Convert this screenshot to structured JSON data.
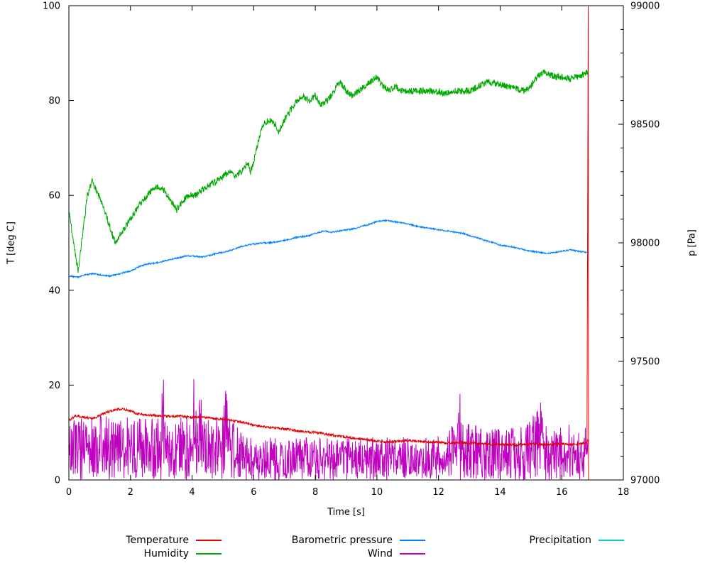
{
  "chart_data": {
    "type": "line",
    "title": "",
    "xlabel": "Time [s]",
    "ylabel_left": "T [deg C]",
    "ylabel_right": "p [Pa]",
    "xlim": [
      0,
      18
    ],
    "ylim_left": [
      0,
      100
    ],
    "ylim_right": [
      97000,
      99000
    ],
    "xticks": [
      0,
      2,
      4,
      6,
      8,
      10,
      12,
      14,
      16,
      18
    ],
    "yticks_left": [
      0,
      20,
      40,
      60,
      80,
      100
    ],
    "yticks_right": [
      97000,
      97500,
      98000,
      98500,
      99000
    ],
    "yticks_right_minor_step": 100,
    "grid": false,
    "legend_position": "bottom",
    "series": [
      {
        "name": "Temperature",
        "color": "#dd0000",
        "axis": "left",
        "style": "noisy-line",
        "noise": 0.25,
        "keypoints": [
          [
            0,
            12.5
          ],
          [
            0.2,
            13.5
          ],
          [
            0.5,
            13.2
          ],
          [
            0.8,
            13.0
          ],
          [
            1.0,
            13.6
          ],
          [
            1.2,
            14.2
          ],
          [
            1.5,
            14.8
          ],
          [
            1.7,
            15.0
          ],
          [
            2.0,
            14.6
          ],
          [
            2.2,
            14.0
          ],
          [
            2.5,
            13.7
          ],
          [
            2.8,
            13.6
          ],
          [
            3.0,
            13.5
          ],
          [
            3.3,
            13.4
          ],
          [
            3.6,
            13.5
          ],
          [
            4.0,
            13.2
          ],
          [
            4.3,
            13.3
          ],
          [
            4.6,
            13.0
          ],
          [
            5.0,
            12.8
          ],
          [
            5.3,
            12.5
          ],
          [
            5.6,
            12.2
          ],
          [
            6.0,
            11.6
          ],
          [
            6.3,
            11.2
          ],
          [
            6.6,
            11.0
          ],
          [
            7.0,
            10.8
          ],
          [
            7.3,
            10.5
          ],
          [
            7.6,
            10.2
          ],
          [
            8.0,
            10.0
          ],
          [
            8.3,
            9.7
          ],
          [
            8.6,
            9.4
          ],
          [
            9.0,
            9.0
          ],
          [
            9.3,
            8.8
          ],
          [
            9.6,
            8.5
          ],
          [
            10.0,
            8.2
          ],
          [
            10.3,
            8.0
          ],
          [
            10.6,
            8.1
          ],
          [
            11.0,
            8.3
          ],
          [
            11.3,
            8.2
          ],
          [
            11.6,
            8.0
          ],
          [
            12.0,
            7.9
          ],
          [
            12.5,
            7.8
          ],
          [
            13.0,
            7.8
          ],
          [
            13.5,
            7.6
          ],
          [
            14.0,
            7.5
          ],
          [
            14.5,
            7.4
          ],
          [
            15.0,
            7.6
          ],
          [
            15.5,
            7.4
          ],
          [
            16.0,
            7.6
          ],
          [
            16.4,
            7.5
          ],
          [
            16.7,
            7.7
          ],
          [
            16.82,
            8.0
          ],
          [
            16.86,
            100
          ],
          [
            16.87,
            0
          ]
        ]
      },
      {
        "name": "Humidity",
        "color": "#00aa00",
        "axis": "left",
        "style": "noisy-line",
        "noise": 0.7,
        "keypoints": [
          [
            0,
            57
          ],
          [
            0.15,
            50
          ],
          [
            0.3,
            44
          ],
          [
            0.45,
            52
          ],
          [
            0.6,
            60
          ],
          [
            0.75,
            63
          ],
          [
            0.9,
            61
          ],
          [
            1.1,
            58
          ],
          [
            1.3,
            54
          ],
          [
            1.5,
            50
          ],
          [
            1.7,
            52
          ],
          [
            1.9,
            54
          ],
          [
            2.1,
            56
          ],
          [
            2.4,
            59
          ],
          [
            2.7,
            61
          ],
          [
            2.9,
            62
          ],
          [
            3.1,
            61
          ],
          [
            3.3,
            59
          ],
          [
            3.5,
            57
          ],
          [
            3.7,
            59
          ],
          [
            3.9,
            60
          ],
          [
            4.1,
            60
          ],
          [
            4.3,
            61
          ],
          [
            4.5,
            62
          ],
          [
            4.8,
            63
          ],
          [
            5.0,
            64
          ],
          [
            5.2,
            65
          ],
          [
            5.4,
            64
          ],
          [
            5.6,
            65
          ],
          [
            5.8,
            67
          ],
          [
            5.9,
            65
          ],
          [
            6.0,
            67
          ],
          [
            6.1,
            70
          ],
          [
            6.3,
            75
          ],
          [
            6.5,
            76
          ],
          [
            6.7,
            75
          ],
          [
            6.8,
            73
          ],
          [
            7.0,
            76
          ],
          [
            7.2,
            78
          ],
          [
            7.4,
            80
          ],
          [
            7.6,
            81
          ],
          [
            7.8,
            80
          ],
          [
            8.0,
            81
          ],
          [
            8.2,
            79
          ],
          [
            8.4,
            80
          ],
          [
            8.6,
            82
          ],
          [
            8.8,
            84
          ],
          [
            9.0,
            82
          ],
          [
            9.2,
            81
          ],
          [
            9.4,
            82
          ],
          [
            9.6,
            83
          ],
          [
            9.8,
            84
          ],
          [
            10.0,
            85
          ],
          [
            10.2,
            83
          ],
          [
            10.4,
            82
          ],
          [
            10.6,
            83
          ],
          [
            10.8,
            82
          ],
          [
            11.0,
            82
          ],
          [
            11.5,
            82
          ],
          [
            12.0,
            82
          ],
          [
            12.2,
            81.5
          ],
          [
            12.5,
            82
          ],
          [
            13.0,
            82
          ],
          [
            13.3,
            83
          ],
          [
            13.6,
            84
          ],
          [
            13.9,
            83.5
          ],
          [
            14.2,
            83
          ],
          [
            14.5,
            82.5
          ],
          [
            14.8,
            82
          ],
          [
            15.0,
            83
          ],
          [
            15.2,
            85
          ],
          [
            15.4,
            86
          ],
          [
            15.6,
            85.5
          ],
          [
            15.8,
            85
          ],
          [
            16.0,
            85
          ],
          [
            16.3,
            84.5
          ],
          [
            16.5,
            85
          ],
          [
            16.7,
            85.5
          ],
          [
            16.85,
            86
          ]
        ]
      },
      {
        "name": "Barometric pressure",
        "color": "#0080ff",
        "axis": "right",
        "style": "noisy-line",
        "noise": 3,
        "keypoints": [
          [
            0,
            97860
          ],
          [
            0.3,
            97855
          ],
          [
            0.5,
            97865
          ],
          [
            0.8,
            97870
          ],
          [
            1.0,
            97865
          ],
          [
            1.3,
            97860
          ],
          [
            1.5,
            97865
          ],
          [
            1.8,
            97875
          ],
          [
            2.0,
            97880
          ],
          [
            2.3,
            97900
          ],
          [
            2.5,
            97910
          ],
          [
            2.8,
            97915
          ],
          [
            3.0,
            97920
          ],
          [
            3.3,
            97930
          ],
          [
            3.5,
            97935
          ],
          [
            3.8,
            97945
          ],
          [
            4.0,
            97945
          ],
          [
            4.3,
            97940
          ],
          [
            4.5,
            97945
          ],
          [
            4.8,
            97955
          ],
          [
            5.0,
            97960
          ],
          [
            5.3,
            97970
          ],
          [
            5.5,
            97980
          ],
          [
            5.8,
            97990
          ],
          [
            6.0,
            97995
          ],
          [
            6.3,
            98000
          ],
          [
            6.5,
            98000
          ],
          [
            6.8,
            98005
          ],
          [
            7.0,
            98010
          ],
          [
            7.3,
            98020
          ],
          [
            7.5,
            98025
          ],
          [
            7.8,
            98030
          ],
          [
            8.0,
            98040
          ],
          [
            8.3,
            98050
          ],
          [
            8.5,
            98045
          ],
          [
            8.8,
            98050
          ],
          [
            9.0,
            98055
          ],
          [
            9.3,
            98060
          ],
          [
            9.5,
            98070
          ],
          [
            9.8,
            98080
          ],
          [
            10.0,
            98090
          ],
          [
            10.3,
            98095
          ],
          [
            10.5,
            98090
          ],
          [
            10.8,
            98085
          ],
          [
            11.0,
            98080
          ],
          [
            11.3,
            98070
          ],
          [
            11.5,
            98065
          ],
          [
            11.8,
            98060
          ],
          [
            12.0,
            98055
          ],
          [
            12.3,
            98050
          ],
          [
            12.5,
            98045
          ],
          [
            12.8,
            98040
          ],
          [
            13.0,
            98030
          ],
          [
            13.3,
            98020
          ],
          [
            13.5,
            98010
          ],
          [
            13.8,
            98000
          ],
          [
            14.0,
            97990
          ],
          [
            14.3,
            97985
          ],
          [
            14.5,
            97980
          ],
          [
            14.8,
            97970
          ],
          [
            15.0,
            97965
          ],
          [
            15.3,
            97960
          ],
          [
            15.5,
            97955
          ],
          [
            15.8,
            97960
          ],
          [
            16.0,
            97965
          ],
          [
            16.3,
            97970
          ],
          [
            16.5,
            97965
          ],
          [
            16.8,
            97960
          ],
          [
            16.85,
            97960
          ]
        ]
      },
      {
        "name": "Wind",
        "color": "#bf00bf",
        "axis": "left",
        "style": "spikes",
        "noise": 0,
        "keypoints": [
          [
            0,
            13
          ],
          [
            0.5,
            13
          ],
          [
            1.0,
            14
          ],
          [
            1.5,
            13
          ],
          [
            2.0,
            14
          ],
          [
            2.5,
            13
          ],
          [
            3.0,
            13
          ],
          [
            3.05,
            24
          ],
          [
            3.15,
            13
          ],
          [
            3.5,
            13
          ],
          [
            4.0,
            14
          ],
          [
            4.05,
            22
          ],
          [
            4.15,
            13
          ],
          [
            4.25,
            21
          ],
          [
            4.35,
            13
          ],
          [
            4.6,
            13
          ],
          [
            5.0,
            14
          ],
          [
            5.1,
            20
          ],
          [
            5.2,
            13
          ],
          [
            5.4,
            12
          ],
          [
            5.6,
            10
          ],
          [
            6.0,
            9
          ],
          [
            6.5,
            9
          ],
          [
            7.0,
            9
          ],
          [
            7.5,
            9
          ],
          [
            8.0,
            9
          ],
          [
            8.5,
            9
          ],
          [
            9.0,
            9
          ],
          [
            9.5,
            9
          ],
          [
            10.0,
            9
          ],
          [
            10.5,
            9
          ],
          [
            11.0,
            9
          ],
          [
            11.5,
            9
          ],
          [
            12.0,
            10
          ],
          [
            12.3,
            12
          ],
          [
            12.6,
            13
          ],
          [
            12.7,
            20
          ],
          [
            12.8,
            13
          ],
          [
            13.0,
            12
          ],
          [
            13.5,
            11
          ],
          [
            14.0,
            11
          ],
          [
            14.5,
            12
          ],
          [
            15.0,
            13
          ],
          [
            15.3,
            17
          ],
          [
            15.4,
            12
          ],
          [
            15.8,
            11
          ],
          [
            16.2,
            12
          ],
          [
            16.6,
            11
          ],
          [
            16.85,
            12
          ]
        ]
      },
      {
        "name": "Precipitation",
        "color": "#00cccc",
        "axis": "left",
        "style": "flat",
        "noise": 0,
        "keypoints": [
          [
            0,
            0
          ],
          [
            16.85,
            0
          ]
        ]
      }
    ]
  }
}
